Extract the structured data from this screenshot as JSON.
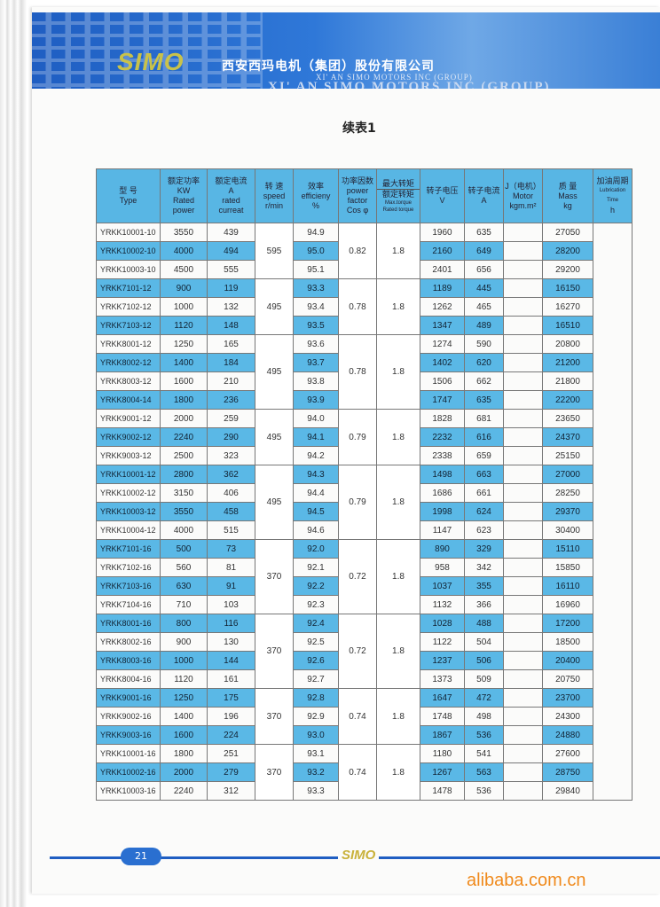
{
  "header": {
    "logo": "SIMO",
    "company_cn": "西安西玛电机（集团）股份有限公司",
    "company_en_small": "XI' AN SIMO MOTORS INC (GROUP)",
    "company_en": "XI' AN SIMO MOTORS INC (GROUP)",
    "brand_color": "#1f5ec2"
  },
  "title": "续表1",
  "table": {
    "columns": [
      [
        "型 号",
        "Type"
      ],
      [
        "额定功率",
        "KW",
        "Rated",
        "power"
      ],
      [
        "额定电流",
        "A",
        "rated",
        "curreat"
      ],
      [
        "转 速",
        "speed",
        "r/min"
      ],
      [
        "效率",
        "efficieny",
        "%"
      ],
      [
        "功率因数",
        "power",
        "factor",
        "Cos φ"
      ],
      [
        "最大转矩",
        "额定转矩",
        "Max.torque",
        "Rated torque"
      ],
      [
        "转子电压",
        "V"
      ],
      [
        "转子电流",
        "A"
      ],
      [
        "J（电机）",
        "Motor",
        "kgm.m²"
      ],
      [
        "质 量",
        "Mass",
        "kg"
      ],
      [
        "加油周期",
        "Lubrication Time",
        "h"
      ]
    ],
    "highlight_color": "#5ab8e6",
    "groups": [
      {
        "speed": "595",
        "pf": "0.82",
        "torque": "1.8",
        "rows": [
          [
            "YRKK10001-10",
            "3550",
            "439",
            "94.9",
            "1960",
            "635",
            "27050"
          ],
          [
            "YRKK10002-10",
            "4000",
            "494",
            "95.0",
            "2160",
            "649",
            "28200"
          ],
          [
            "YRKK10003-10",
            "4500",
            "555",
            "95.1",
            "2401",
            "656",
            "29200"
          ]
        ]
      },
      {
        "speed": "495",
        "pf": "0.78",
        "torque": "1.8",
        "rows": [
          [
            "YRKK7101-12",
            "900",
            "119",
            "93.3",
            "1189",
            "445",
            "16150"
          ],
          [
            "YRKK7102-12",
            "1000",
            "132",
            "93.4",
            "1262",
            "465",
            "16270"
          ],
          [
            "YRKK7103-12",
            "1120",
            "148",
            "93.5",
            "1347",
            "489",
            "16510"
          ]
        ]
      },
      {
        "speed": "495",
        "pf": "0.78",
        "torque": "1.8",
        "rows": [
          [
            "YRKK8001-12",
            "1250",
            "165",
            "93.6",
            "1274",
            "590",
            "20800"
          ],
          [
            "YRKK8002-12",
            "1400",
            "184",
            "93.7",
            "1402",
            "620",
            "21200"
          ],
          [
            "YRKK8003-12",
            "1600",
            "210",
            "93.8",
            "1506",
            "662",
            "21800"
          ],
          [
            "YRKK8004-14",
            "1800",
            "236",
            "93.9",
            "1747",
            "635",
            "22200"
          ]
        ]
      },
      {
        "speed": "495",
        "pf": "0.79",
        "torque": "1.8",
        "rows": [
          [
            "YRKK9001-12",
            "2000",
            "259",
            "94.0",
            "1828",
            "681",
            "23650"
          ],
          [
            "YRKK9002-12",
            "2240",
            "290",
            "94.1",
            "2232",
            "616",
            "24370"
          ],
          [
            "YRKK9003-12",
            "2500",
            "323",
            "94.2",
            "2338",
            "659",
            "25150"
          ]
        ]
      },
      {
        "speed": "495",
        "pf": "0.79",
        "torque": "1.8",
        "rows": [
          [
            "YRKK10001-12",
            "2800",
            "362",
            "94.3",
            "1498",
            "663",
            "27000"
          ],
          [
            "YRKK10002-12",
            "3150",
            "406",
            "94.4",
            "1686",
            "661",
            "28250"
          ],
          [
            "YRKK10003-12",
            "3550",
            "458",
            "94.5",
            "1998",
            "624",
            "29370"
          ],
          [
            "YRKK10004-12",
            "4000",
            "515",
            "94.6",
            "1147",
            "623",
            "30400"
          ]
        ]
      },
      {
        "speed": "370",
        "pf": "0.72",
        "torque": "1.8",
        "rows": [
          [
            "YRKK7101-16",
            "500",
            "73",
            "92.0",
            "890",
            "329",
            "15110"
          ],
          [
            "YRKK7102-16",
            "560",
            "81",
            "92.1",
            "958",
            "342",
            "15850"
          ],
          [
            "YRKK7103-16",
            "630",
            "91",
            "92.2",
            "1037",
            "355",
            "16110"
          ],
          [
            "YRKK7104-16",
            "710",
            "103",
            "92.3",
            "1132",
            "366",
            "16960"
          ]
        ]
      },
      {
        "speed": "370",
        "pf": "0.72",
        "torque": "1.8",
        "rows": [
          [
            "YRKK8001-16",
            "800",
            "116",
            "92.4",
            "1028",
            "488",
            "17200"
          ],
          [
            "YRKK8002-16",
            "900",
            "130",
            "92.5",
            "1122",
            "504",
            "18500"
          ],
          [
            "YRKK8003-16",
            "1000",
            "144",
            "92.6",
            "1237",
            "506",
            "20400"
          ],
          [
            "YRKK8004-16",
            "1120",
            "161",
            "92.7",
            "1373",
            "509",
            "20750"
          ]
        ]
      },
      {
        "speed": "370",
        "pf": "0.74",
        "torque": "1.8",
        "rows": [
          [
            "YRKK9001-16",
            "1250",
            "175",
            "92.8",
            "1647",
            "472",
            "23700"
          ],
          [
            "YRKK9002-16",
            "1400",
            "196",
            "92.9",
            "1748",
            "498",
            "24300"
          ],
          [
            "YRKK9003-16",
            "1600",
            "224",
            "93.0",
            "1867",
            "536",
            "24880"
          ]
        ]
      },
      {
        "speed": "370",
        "pf": "0.74",
        "torque": "1.8",
        "rows": [
          [
            "YRKK10001-16",
            "1800",
            "251",
            "93.1",
            "1180",
            "541",
            "27600"
          ],
          [
            "YRKK10002-16",
            "2000",
            "279",
            "93.2",
            "1267",
            "563",
            "28750"
          ],
          [
            "YRKK10003-16",
            "2240",
            "312",
            "93.3",
            "1478",
            "536",
            "29840"
          ]
        ]
      }
    ]
  },
  "footer": {
    "page_number": "21",
    "logo": "SIMO"
  },
  "watermark": "alibaba.com.cn"
}
